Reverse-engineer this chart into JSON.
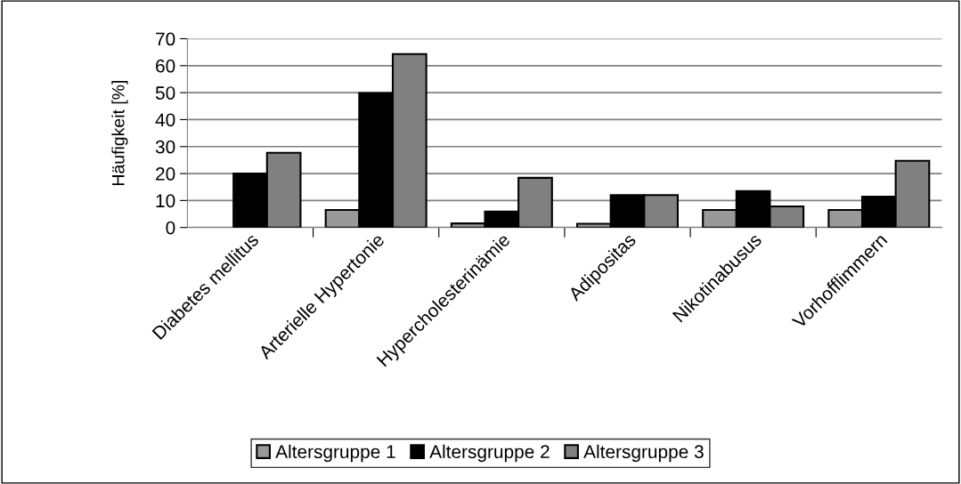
{
  "chart_data": {
    "type": "bar",
    "ylabel": "Häufigkeit [%]",
    "categories": [
      "Diabetes mellitus",
      "Arterielle Hypertonie",
      "Hypercholesterinämie",
      "Adipositas",
      "Nikotinabusus",
      "Vorhofflimmern"
    ],
    "series": [
      {
        "name": "Altersgruppe 1",
        "color": "#999999",
        "values": [
          null,
          6.5,
          1.5,
          1.4,
          6.5,
          6.5
        ]
      },
      {
        "name": "Altersgruppe 2",
        "color": "#000000",
        "values": [
          20.0,
          49.9,
          5.9,
          12.0,
          13.5,
          11.4
        ]
      },
      {
        "name": "Altersgruppe 3",
        "color": "#808080",
        "values": [
          27.7,
          64.3,
          18.4,
          12.0,
          7.8,
          24.7
        ]
      }
    ],
    "ylim": [
      0,
      70
    ],
    "yticks": [
      0,
      10,
      20,
      30,
      40,
      50,
      60,
      70
    ],
    "grid": "y",
    "legend": "bottom"
  }
}
